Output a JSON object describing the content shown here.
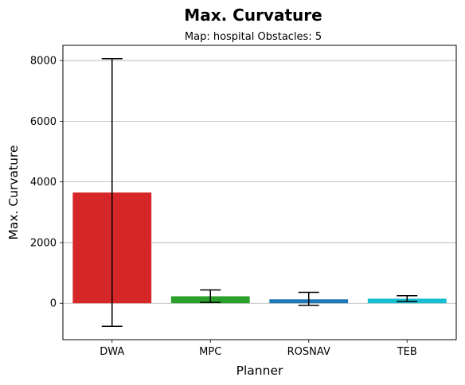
{
  "chart_data": {
    "type": "bar",
    "title": "Max. Curvature",
    "subtitle": "Map: hospital Obstacles: 5",
    "xlabel": "Planner",
    "ylabel": "Max. Curvature",
    "categories": [
      "DWA",
      "MPC",
      "ROSNAV",
      "TEB"
    ],
    "values": [
      3650,
      230,
      130,
      150
    ],
    "error_low": [
      -760,
      30,
      -70,
      60
    ],
    "error_high": [
      8060,
      440,
      360,
      250
    ],
    "colors": [
      "#d62728",
      "#2ca02c",
      "#1f77b4",
      "#17becf"
    ],
    "ylim": [
      -1200,
      8500
    ],
    "yticks": [
      0,
      2000,
      4000,
      6000,
      8000
    ],
    "grid": "y"
  }
}
